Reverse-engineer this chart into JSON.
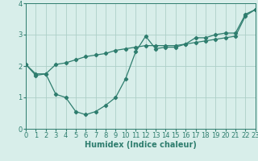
{
  "line1_x": [
    0,
    1,
    2,
    3,
    4,
    5,
    6,
    7,
    8,
    9,
    10,
    11,
    12,
    13,
    14,
    15,
    16,
    17,
    18,
    19,
    20,
    21,
    22,
    23
  ],
  "line1_y": [
    2.05,
    1.75,
    1.75,
    2.05,
    2.1,
    2.2,
    2.3,
    2.35,
    2.4,
    2.5,
    2.55,
    2.6,
    2.65,
    2.65,
    2.65,
    2.65,
    2.7,
    2.75,
    2.8,
    2.85,
    2.9,
    2.95,
    3.6,
    3.8
  ],
  "line2_x": [
    0,
    1,
    2,
    3,
    4,
    5,
    6,
    7,
    8,
    9,
    10,
    11,
    12,
    13,
    14,
    15,
    16,
    17,
    18,
    19,
    20,
    21,
    22,
    23
  ],
  "line2_y": [
    2.05,
    1.7,
    1.75,
    1.1,
    1.0,
    0.55,
    0.45,
    0.55,
    0.75,
    1.0,
    1.6,
    2.45,
    2.95,
    2.55,
    2.6,
    2.6,
    2.7,
    2.9,
    2.9,
    3.0,
    3.05,
    3.05,
    3.65,
    3.8
  ],
  "line_color": "#2e7d6e",
  "bg_color": "#d8eeea",
  "grid_color": "#aecfc8",
  "xlabel": "Humidex (Indice chaleur)",
  "xlim": [
    0,
    23
  ],
  "ylim": [
    0,
    4.0
  ],
  "yticks": [
    0,
    1,
    2,
    3,
    4
  ],
  "xticks": [
    0,
    1,
    2,
    3,
    4,
    5,
    6,
    7,
    8,
    9,
    10,
    11,
    12,
    13,
    14,
    15,
    16,
    17,
    18,
    19,
    20,
    21,
    22,
    23
  ],
  "marker": "D",
  "markersize": 2.2,
  "linewidth": 0.9,
  "xlabel_fontsize": 7,
  "tick_fontsize": 6
}
